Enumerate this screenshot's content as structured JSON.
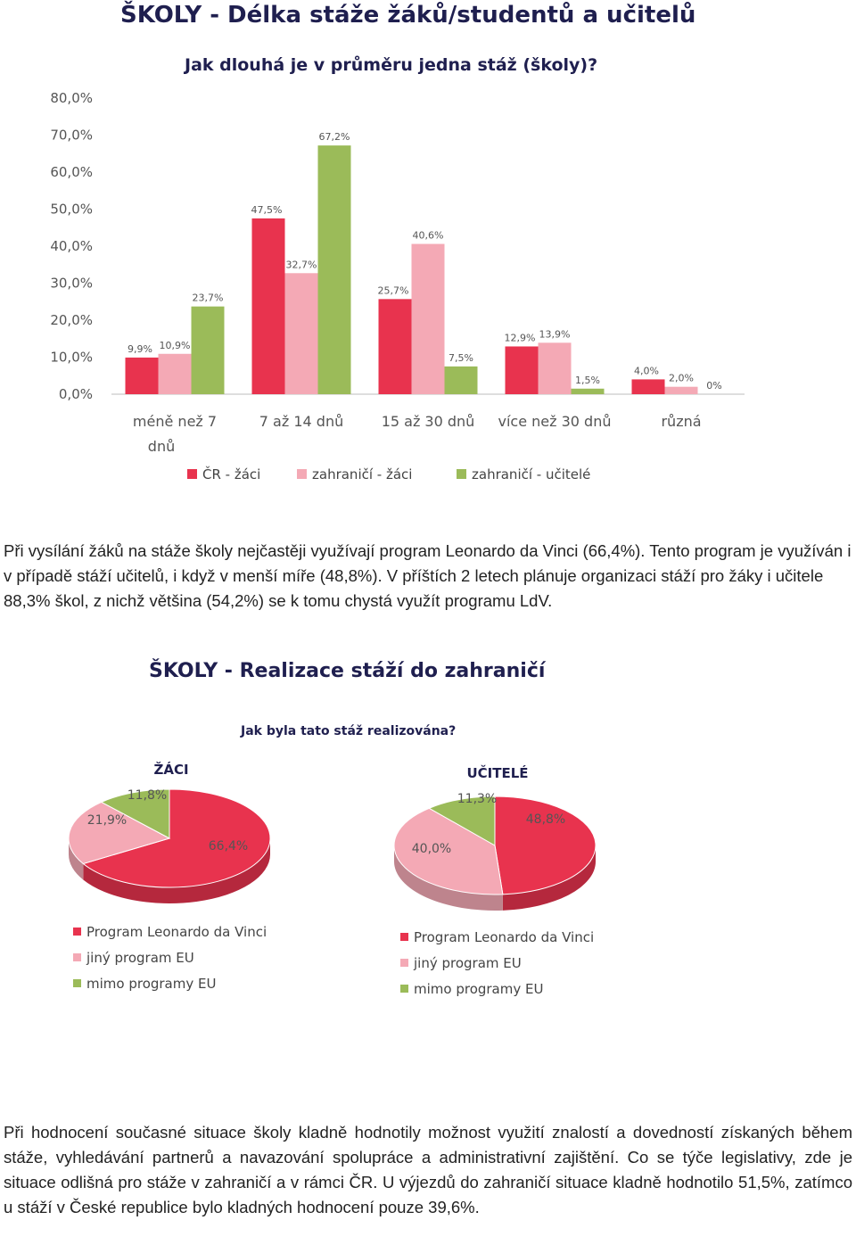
{
  "bar_chart": {
    "title": "ŠKOLY - Délka stáže žáků/studentů a učitelů",
    "subtitle": "Jak dlouhá je v průměru jedna stáž (školy)?"
  },
  "pie_section": {
    "title": "ŠKOLY - Realizace stáží do zahraničí",
    "subtitle": "Jak byla tato stáž realizována?"
  },
  "paragraphs": {
    "p1": "Při vysílání žáků na stáže školy nejčastěji využívají program Leonardo da Vinci (66,4%). Tento program je využíván i v případě stáží učitelů, i když v menší míře (48,8%). V příštích 2 letech plánuje organizaci stáží pro žáky i učitele 88,3% škol, z nichž většina (54,2%) se k tomu chystá využít programu LdV.",
    "p2": "Při hodnocení současné situace školy kladně hodnotily možnost využití znalostí a dovedností získaných během stáže, vyhledávání partnerů a navazování spolupráce a administrativní zajištění. Co se týče legislativy, zde je situace odlišná pro stáže v zahraničí a v rámci ČR. U výjezdů do zahraničí situace kladně hodnotilo 51,5%, zatímco u stáží v České republice bylo kladných hodnocení pouze 39,6%."
  },
  "chart_data": [
    {
      "type": "bar",
      "title": "ŠKOLY - Délka stáže žáků/studentů a učitelů",
      "subtitle": "Jak dlouhá je v průměru jedna stáž (školy)?",
      "categories": [
        [
          "méně než 7",
          "dnů"
        ],
        [
          "7 až 14 dnů"
        ],
        [
          "15 až 30 dnů"
        ],
        [
          "více než 30 dnů"
        ],
        [
          "různá"
        ]
      ],
      "ylim": [
        0,
        80
      ],
      "yticks": [
        "0,0%",
        "10,0%",
        "20,0%",
        "30,0%",
        "40,0%",
        "50,0%",
        "60,0%",
        "70,0%",
        "80,0%"
      ],
      "legend_position": "bottom",
      "series": [
        {
          "name": "ČR - žáci",
          "color": "#e8334e",
          "values": [
            9.9,
            47.5,
            25.7,
            12.9,
            4.0
          ],
          "labels": [
            "9,9%",
            "47,5%",
            "25,7%",
            "12,9%",
            "4,0%"
          ]
        },
        {
          "name": "zahraničí - žáci",
          "color": "#f4a9b5",
          "values": [
            10.9,
            32.7,
            40.6,
            13.9,
            2.0
          ],
          "labels": [
            "10,9%",
            "32,7%",
            "40,6%",
            "13,9%",
            "2,0%"
          ]
        },
        {
          "name": "zahraničí - učitelé",
          "color": "#9bbb59",
          "values": [
            23.7,
            67.2,
            7.5,
            1.5,
            0
          ],
          "labels": [
            "23,7%",
            "67,2%",
            "7,5%",
            "1,5%",
            "0%"
          ]
        }
      ]
    },
    {
      "type": "pie",
      "title": "ŽÁCI",
      "legend_position": "bottom",
      "categories": [
        "Program Leonardo da Vinci",
        "jiný program EU",
        "mimo programy EU"
      ],
      "values": [
        66.4,
        21.9,
        11.8
      ],
      "labels": [
        "66,4%",
        "21,9%",
        "11,8%"
      ],
      "colors": [
        "#e8334e",
        "#f4a9b5",
        "#9bbb59"
      ]
    },
    {
      "type": "pie",
      "title": "UČITELÉ",
      "legend_position": "bottom",
      "categories": [
        "Program Leonardo da Vinci",
        "jiný program EU",
        "mimo programy EU"
      ],
      "values": [
        48.8,
        40.0,
        11.3
      ],
      "labels": [
        "48,8%",
        "40,0%",
        "11,3%"
      ],
      "colors": [
        "#e8334e",
        "#f4a9b5",
        "#9bbb59"
      ]
    }
  ]
}
